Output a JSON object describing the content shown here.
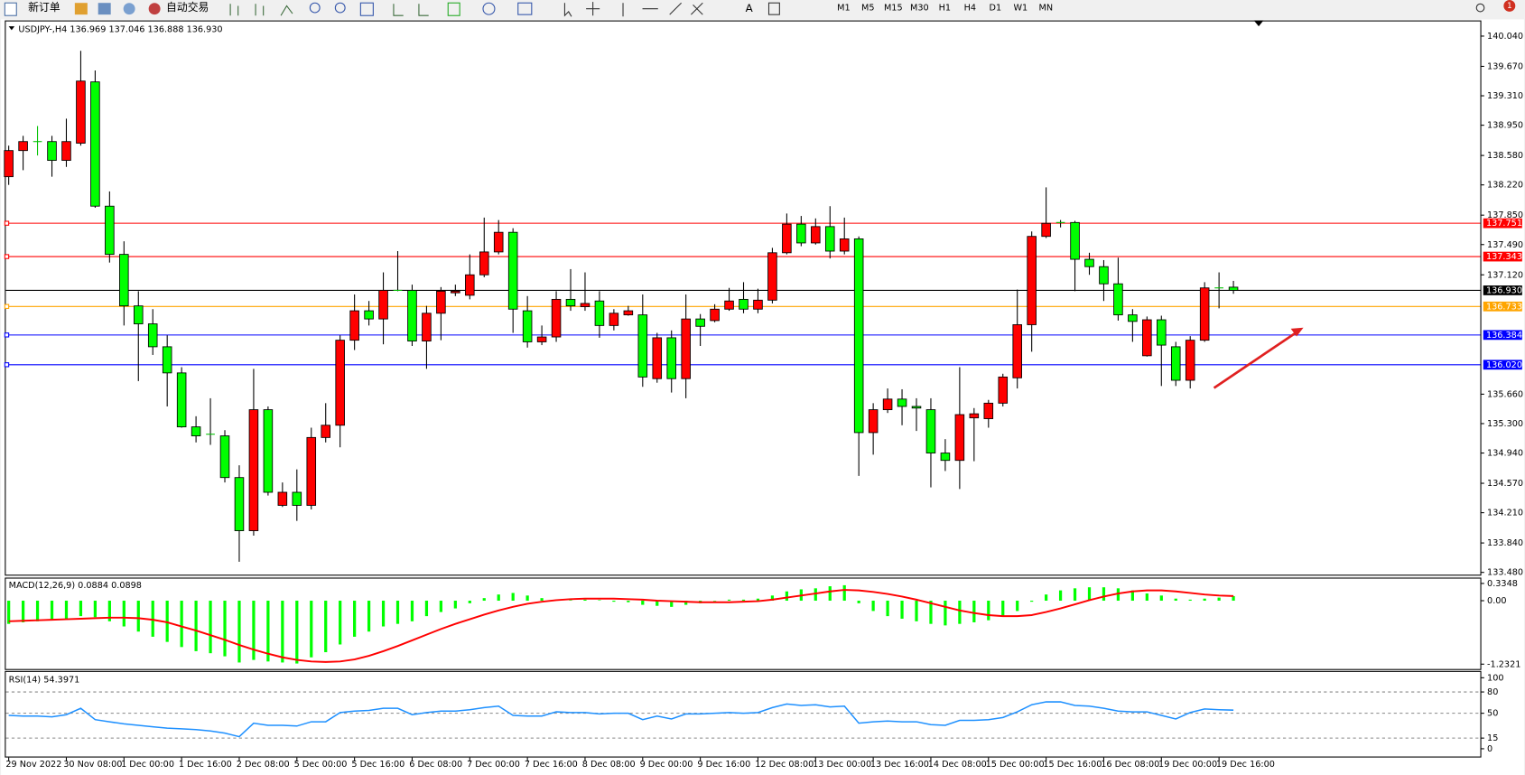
{
  "toolbar": {
    "new_order": "新订单",
    "auto_trading": "自动交易",
    "timeframes": [
      "M1",
      "M5",
      "M15",
      "M30",
      "H1",
      "H4",
      "D1",
      "W1",
      "MN"
    ],
    "notifications": "1"
  },
  "chart_data": [
    {
      "type": "candlestick",
      "title": "USDJPY-,H4 136.969 137.046 136.888 136.930",
      "categories": [
        "29 Nov 2022",
        null,
        null,
        null,
        "30 Nov 08:00",
        null,
        null,
        null,
        "1 Dec 00:00",
        null,
        null,
        null,
        "1 Dec 16:00",
        null,
        null,
        null,
        "2 Dec 08:00",
        null,
        null,
        null,
        "5 Dec 00:00",
        null,
        null,
        null,
        "5 Dec 16:00",
        null,
        null,
        null,
        "6 Dec 08:00",
        null,
        null,
        null,
        "7 Dec 00:00",
        null,
        null,
        null,
        "7 Dec 16:00",
        null,
        null,
        null,
        "8 Dec 08:00",
        null,
        null,
        null,
        "9 Dec 00:00",
        null,
        null,
        null,
        "9 Dec 16:00",
        null,
        null,
        null,
        "12 Dec 08:00",
        null,
        null,
        null,
        "13 Dec 00:00",
        null,
        null,
        null,
        "13 Dec 16:00",
        null,
        null,
        null,
        "14 Dec 08:00",
        null,
        null,
        null,
        "15 Dec 00:00",
        null,
        null,
        null,
        "15 Dec 16:00",
        null,
        null,
        null,
        "16 Dec 08:00",
        null,
        null,
        null,
        "19 Dec 00:00",
        null,
        null,
        null,
        "19 Dec 16:00",
        null
      ],
      "open": [
        138.32,
        138.64,
        138.75,
        138.75,
        138.52,
        138.73,
        139.48,
        137.96,
        137.37,
        136.74,
        136.52,
        136.24,
        135.92,
        135.26,
        135.17,
        135.15,
        134.64,
        133.99,
        135.47,
        134.3,
        134.46,
        134.3,
        135.13,
        135.28,
        136.32,
        136.68,
        136.58,
        136.93,
        136.93,
        136.31,
        136.65,
        136.9,
        136.87,
        137.12,
        137.4,
        137.64,
        136.68,
        136.3,
        136.36,
        136.82,
        136.73,
        136.8,
        136.5,
        136.63,
        136.63,
        135.85,
        136.35,
        135.85,
        136.58,
        136.56,
        136.7,
        136.82,
        136.7,
        136.81,
        137.39,
        137.74,
        137.51,
        137.71,
        137.41,
        137.56,
        135.19,
        135.47,
        135.6,
        135.51,
        135.47,
        134.94,
        134.85,
        135.37,
        135.36,
        135.55,
        135.86,
        136.51,
        137.59,
        137.75,
        137.76,
        137.31,
        137.22,
        137.01,
        136.63,
        136.13,
        136.57,
        136.24,
        135.83,
        136.32,
        136.96,
        136.969
      ],
      "high": [
        138.7,
        138.82,
        138.94,
        138.82,
        139.03,
        139.86,
        139.62,
        138.14,
        137.53,
        136.92,
        136.7,
        136.38,
        135.99,
        135.39,
        135.61,
        135.22,
        134.79,
        135.97,
        135.51,
        134.58,
        134.74,
        135.25,
        135.55,
        136.38,
        136.88,
        136.8,
        137.15,
        137.41,
        137.0,
        136.74,
        136.97,
        137.0,
        137.37,
        137.82,
        137.79,
        137.69,
        136.86,
        136.5,
        136.92,
        137.19,
        137.15,
        136.92,
        136.7,
        136.74,
        136.88,
        136.41,
        136.44,
        136.88,
        136.64,
        136.76,
        136.96,
        137.03,
        136.95,
        137.45,
        137.87,
        137.84,
        137.81,
        137.96,
        137.82,
        137.59,
        135.55,
        135.73,
        135.72,
        135.61,
        135.61,
        135.11,
        135.99,
        135.49,
        135.59,
        135.91,
        136.94,
        137.65,
        138.19,
        137.79,
        137.78,
        137.39,
        137.3,
        137.33,
        136.7,
        136.61,
        136.62,
        136.3,
        136.37,
        137.03,
        137.15,
        137.046
      ],
      "low": [
        138.22,
        138.4,
        138.58,
        138.32,
        138.44,
        138.7,
        137.94,
        137.27,
        136.5,
        135.82,
        136.14,
        135.51,
        135.25,
        135.07,
        135.04,
        134.58,
        133.61,
        133.93,
        134.42,
        134.28,
        134.11,
        134.25,
        135.07,
        135.01,
        136.2,
        136.5,
        136.27,
        136.92,
        136.25,
        135.97,
        136.32,
        136.86,
        136.82,
        137.09,
        137.37,
        136.41,
        136.23,
        136.26,
        136.3,
        136.68,
        136.68,
        136.35,
        136.44,
        136.62,
        135.75,
        135.8,
        135.68,
        135.61,
        136.25,
        136.54,
        136.68,
        136.65,
        136.65,
        136.77,
        137.37,
        137.47,
        137.49,
        137.32,
        137.37,
        134.66,
        134.92,
        135.43,
        135.28,
        135.21,
        134.52,
        134.72,
        134.5,
        134.84,
        135.25,
        135.51,
        135.73,
        136.18,
        137.57,
        137.7,
        136.92,
        137.12,
        136.8,
        136.56,
        136.3,
        136.12,
        135.76,
        135.76,
        135.73,
        136.3,
        136.71,
        136.888
      ],
      "close": [
        138.64,
        138.75,
        138.75,
        138.52,
        138.75,
        139.49,
        137.96,
        137.37,
        136.74,
        136.52,
        136.24,
        135.92,
        135.26,
        135.15,
        135.16,
        134.64,
        133.99,
        135.47,
        134.46,
        134.46,
        134.3,
        135.13,
        135.28,
        136.32,
        136.68,
        136.58,
        136.93,
        136.92,
        136.31,
        136.65,
        136.92,
        136.92,
        137.12,
        137.4,
        137.64,
        136.7,
        136.3,
        136.36,
        136.82,
        136.74,
        136.77,
        136.5,
        136.65,
        136.68,
        135.87,
        136.35,
        135.85,
        136.58,
        136.49,
        136.7,
        136.8,
        136.7,
        136.81,
        137.39,
        137.74,
        137.51,
        137.71,
        137.41,
        137.56,
        135.19,
        135.47,
        135.6,
        135.51,
        135.49,
        134.94,
        134.85,
        135.41,
        135.42,
        135.55,
        135.87,
        136.51,
        137.59,
        137.75,
        137.76,
        137.31,
        137.22,
        137.01,
        136.63,
        136.55,
        136.57,
        136.26,
        135.83,
        136.32,
        136.96,
        136.95,
        136.93
      ],
      "up_color": "#ff0000",
      "down_color": "#00ff00",
      "ylim": [
        133.44,
        140.22
      ],
      "yticks": [
        {
          "value": 140.04,
          "label": "140.040"
        },
        {
          "value": 139.67,
          "label": "139.670"
        },
        {
          "value": 139.31,
          "label": "139.310"
        },
        {
          "value": 138.95,
          "label": "138.950"
        },
        {
          "value": 138.58,
          "label": "138.580"
        },
        {
          "value": 138.22,
          "label": "138.220"
        },
        {
          "value": 137.85,
          "label": "137.850"
        },
        {
          "value": 137.49,
          "label": "137.490"
        },
        {
          "value": 137.12,
          "label": "137.120"
        },
        {
          "value": 135.66,
          "label": "135.660"
        },
        {
          "value": 135.3,
          "label": "135.300"
        },
        {
          "value": 134.94,
          "label": "134.940"
        },
        {
          "value": 134.57,
          "label": "134.570"
        },
        {
          "value": 134.21,
          "label": "134.210"
        },
        {
          "value": 133.84,
          "label": "133.840"
        },
        {
          "value": 133.48,
          "label": "133.480"
        }
      ],
      "hlines": [
        {
          "value": 137.751,
          "color": "#ff0000"
        },
        {
          "value": 137.343,
          "color": "#ff0000"
        },
        {
          "value": 136.93,
          "label": "136.930",
          "color": "#000000"
        },
        {
          "value": 136.733,
          "color": "#ffa500"
        },
        {
          "value": 136.384,
          "color": "#0000ff"
        },
        {
          "value": 136.02,
          "label": "136.020",
          "color": "#0000ff"
        }
      ]
    },
    {
      "type": "macd",
      "title": "MACD(12,26,9) 0.0884 0.0898",
      "histogram": {
        "color": "#00ff00",
        "values": [
          -0.45,
          -0.42,
          -0.4,
          -0.38,
          -0.36,
          -0.3,
          -0.32,
          -0.4,
          -0.5,
          -0.6,
          -0.7,
          -0.8,
          -0.9,
          -0.98,
          -1.02,
          -1.08,
          -1.2,
          -1.15,
          -1.18,
          -1.2,
          -1.22,
          -1.1,
          -1.0,
          -0.85,
          -0.7,
          -0.6,
          -0.5,
          -0.45,
          -0.4,
          -0.3,
          -0.22,
          -0.15,
          -0.05,
          0.05,
          0.12,
          0.15,
          0.1,
          0.05,
          0.02,
          0.01,
          0.02,
          0.01,
          -0.02,
          -0.03,
          -0.08,
          -0.1,
          -0.12,
          -0.08,
          -0.05,
          0.0,
          0.02,
          0.02,
          0.04,
          0.1,
          0.18,
          0.22,
          0.24,
          0.28,
          0.3,
          -0.05,
          -0.2,
          -0.3,
          -0.35,
          -0.4,
          -0.45,
          -0.48,
          -0.45,
          -0.42,
          -0.38,
          -0.3,
          -0.2,
          -0.02,
          0.12,
          0.2,
          0.24,
          0.26,
          0.26,
          0.24,
          0.2,
          0.14,
          0.1,
          0.04,
          0.02,
          0.04,
          0.06,
          0.0884
        ]
      },
      "signal": {
        "color": "#ff0000",
        "values": [
          -0.4,
          -0.39,
          -0.38,
          -0.37,
          -0.36,
          -0.35,
          -0.34,
          -0.33,
          -0.33,
          -0.34,
          -0.37,
          -0.42,
          -0.5,
          -0.58,
          -0.67,
          -0.76,
          -0.86,
          -0.95,
          -1.03,
          -1.1,
          -1.15,
          -1.18,
          -1.19,
          -1.18,
          -1.14,
          -1.07,
          -0.98,
          -0.88,
          -0.77,
          -0.66,
          -0.55,
          -0.45,
          -0.36,
          -0.27,
          -0.19,
          -0.12,
          -0.06,
          -0.02,
          0.01,
          0.03,
          0.04,
          0.04,
          0.04,
          0.03,
          0.02,
          0.0,
          -0.01,
          -0.02,
          -0.03,
          -0.03,
          -0.03,
          -0.02,
          -0.01,
          0.02,
          0.06,
          0.1,
          0.14,
          0.18,
          0.21,
          0.2,
          0.17,
          0.13,
          0.08,
          0.02,
          -0.05,
          -0.12,
          -0.19,
          -0.24,
          -0.28,
          -0.3,
          -0.3,
          -0.28,
          -0.22,
          -0.15,
          -0.07,
          0.01,
          0.08,
          0.14,
          0.18,
          0.2,
          0.2,
          0.18,
          0.15,
          0.12,
          0.1,
          0.0898
        ]
      },
      "ylim": [
        -1.2321,
        0.3348
      ],
      "yticks": [
        0.3348,
        {
          "value": 0,
          "label": "0.00"
        },
        -1.2321
      ]
    },
    {
      "type": "line",
      "title": "RSI(14) 54.3971",
      "color": "#1e90ff",
      "values": [
        47,
        46,
        46,
        45,
        48,
        57,
        41,
        38,
        35,
        33,
        31,
        29,
        28,
        27,
        25,
        22,
        17,
        36,
        33,
        33,
        32,
        38,
        38,
        51,
        53,
        54,
        57,
        57,
        48,
        51,
        53,
        53,
        55,
        58,
        60,
        47,
        46,
        46,
        52,
        51,
        51,
        49,
        50,
        50,
        41,
        46,
        42,
        49,
        49,
        50,
        51,
        50,
        51,
        58,
        63,
        61,
        62,
        59,
        60,
        36,
        38,
        39,
        38,
        38,
        34,
        33,
        40,
        40,
        41,
        44,
        52,
        62,
        66,
        66,
        61,
        60,
        57,
        53,
        52,
        52,
        47,
        42,
        51,
        56,
        55,
        54.3971
      ],
      "ylim": [
        0,
        100
      ],
      "yticks": [
        100,
        80,
        50,
        15,
        0
      ],
      "grid": "dashed"
    }
  ]
}
